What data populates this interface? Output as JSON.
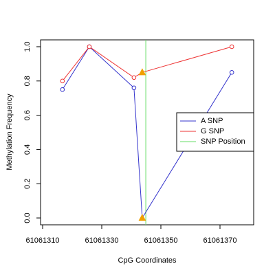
{
  "chart_data": {
    "type": "line",
    "x_label": "CpG Coordinates",
    "y_label": "Methylation Frequency",
    "x": [
      61061316.7,
      61061325.8,
      61061340.9,
      61061343.7,
      61061374
    ],
    "series": [
      {
        "name": "A SNP",
        "color": "#3333cc",
        "values": [
          0.75,
          1.0,
          0.76,
          0.0,
          0.85
        ]
      },
      {
        "name": "G SNP",
        "color": "#ee3333",
        "values": [
          0.8,
          1.0,
          0.82,
          0.85,
          1.0
        ]
      }
    ],
    "markers": [
      "circle",
      "circle",
      "circle",
      "triangle",
      "circle"
    ],
    "triangle_color": "#f0a000",
    "snp_line": {
      "name": "SNP Position",
      "color": "#66dd66",
      "x": 61061344.9
    },
    "xlim": [
      61061309.3,
      61061381.4
    ],
    "ylim": [
      -0.04,
      1.04
    ],
    "xticks": [
      61061310,
      61061330,
      61061350,
      61061370
    ],
    "yticks": [
      {
        "value": 0,
        "label": "0.0"
      },
      {
        "value": 0.2,
        "label": "0.2"
      },
      {
        "value": 0.4,
        "label": "0.4"
      },
      {
        "value": 0.6,
        "label": "0.6"
      },
      {
        "value": 0.8,
        "label": "0.8"
      },
      {
        "value": 1.0,
        "label": "1.0"
      }
    ],
    "legend": "right"
  }
}
